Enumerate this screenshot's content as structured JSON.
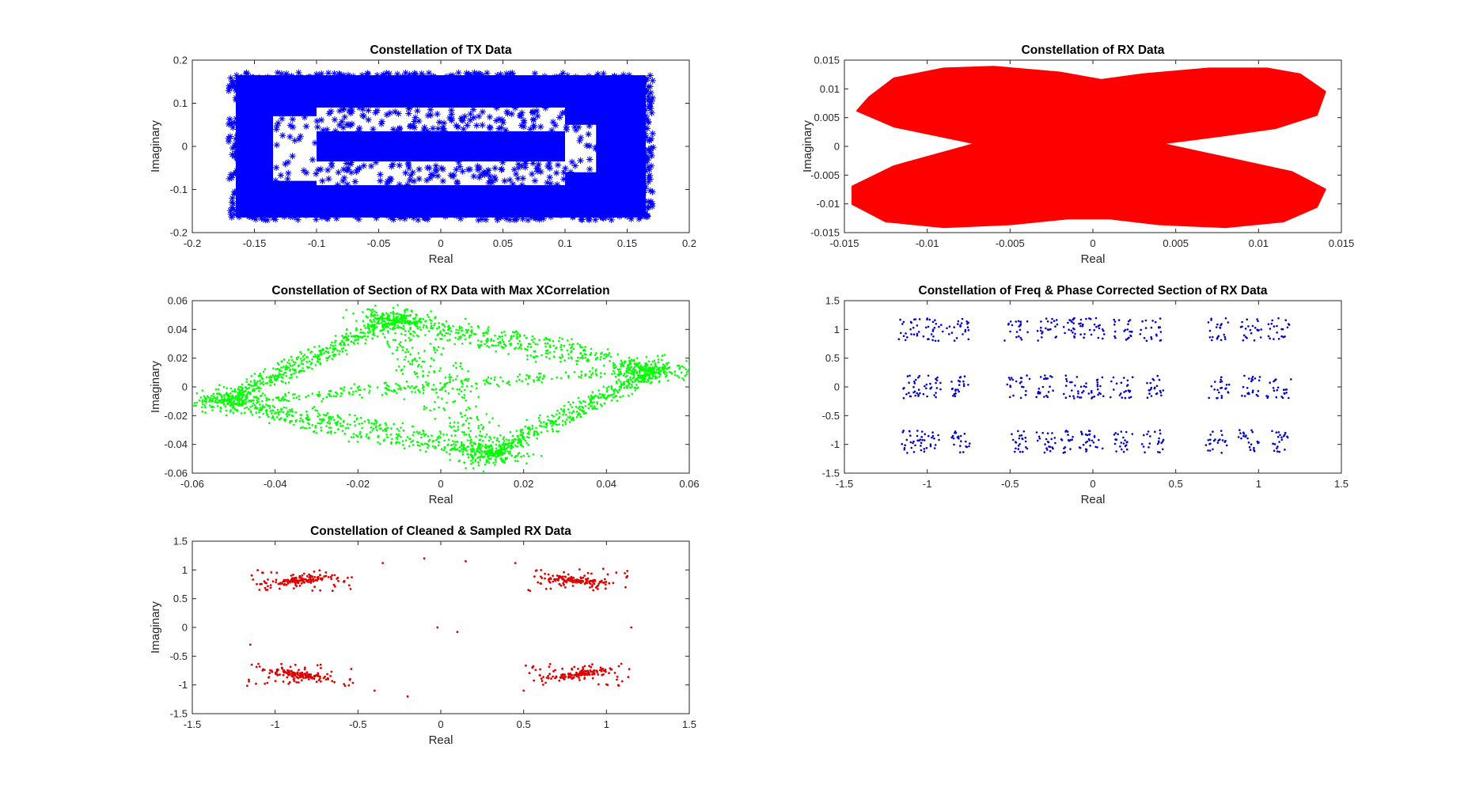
{
  "figure": {
    "background": "#ffffff",
    "axis_color": "#262626"
  },
  "chart_data": [
    {
      "id": "tx",
      "type": "scatter",
      "title": "Constellation of TX Data",
      "xlabel": "Real",
      "ylabel": "Imaginary",
      "xlim": [
        -0.2,
        0.2
      ],
      "ylim": [
        -0.2,
        0.2
      ],
      "xticks": [
        -0.2,
        -0.15,
        -0.1,
        -0.05,
        0,
        0.05,
        0.1,
        0.15,
        0.2
      ],
      "xtick_labels": [
        "-0.2",
        "-0.15",
        "-0.1",
        "-0.05",
        "0",
        "0.05",
        "0.1",
        "0.15",
        "0.2"
      ],
      "yticks": [
        -0.2,
        -0.1,
        0,
        0.1,
        0.2
      ],
      "ytick_labels": [
        "-0.2",
        "-0.1",
        "0",
        "0.1",
        "0.2"
      ],
      "grid": false,
      "marker": "asterisk",
      "color": "#0000ff",
      "series": [
        {
          "shape": "filled-rectangle-with-holes",
          "outer_bounds": {
            "x": [
              -0.165,
              0.165
            ],
            "y": [
              -0.165,
              0.165
            ]
          },
          "holes": [
            {
              "x": [
                -0.135,
                -0.1
              ],
              "y": [
                -0.08,
                0.07
              ]
            },
            {
              "x": [
                0.1,
                0.125
              ],
              "y": [
                -0.06,
                0.05
              ]
            },
            {
              "x": [
                -0.1,
                0.1
              ],
              "y": [
                -0.09,
                -0.035
              ]
            },
            {
              "x": [
                -0.1,
                0.1
              ],
              "y": [
                0.035,
                0.09
              ]
            }
          ]
        }
      ]
    },
    {
      "id": "rx",
      "type": "scatter",
      "title": "Constellation of RX Data",
      "xlabel": "Real",
      "ylabel": "Imaginary",
      "xlim": [
        -0.015,
        0.015
      ],
      "ylim": [
        -0.015,
        0.015
      ],
      "xticks": [
        -0.015,
        -0.01,
        -0.005,
        0,
        0.005,
        0.01,
        0.015
      ],
      "xtick_labels": [
        "-0.015",
        "-0.01",
        "-0.005",
        "0",
        "0.005",
        "0.01",
        "0.015"
      ],
      "yticks": [
        -0.015,
        -0.01,
        -0.005,
        0,
        0.005,
        0.01,
        0.015
      ],
      "ytick_labels": [
        "-0.015",
        "-0.01",
        "-0.005",
        "0",
        "0.005",
        "0.01",
        "0.015"
      ],
      "grid": false,
      "marker": "point",
      "color": "#ff0000",
      "series": [
        {
          "shape": "filled-bowtie-region",
          "outline": [
            [
              -0.0135,
              0.0085
            ],
            [
              -0.012,
              0.0118
            ],
            [
              -0.009,
              0.0135
            ],
            [
              -0.006,
              0.0138
            ],
            [
              -0.002,
              0.0128
            ],
            [
              0.0005,
              0.0115
            ],
            [
              0.003,
              0.0125
            ],
            [
              0.007,
              0.0135
            ],
            [
              0.0105,
              0.0135
            ],
            [
              0.0125,
              0.0125
            ],
            [
              0.014,
              0.0095
            ],
            [
              0.0135,
              0.0055
            ],
            [
              0.011,
              0.0032
            ],
            [
              0.008,
              0.002
            ],
            [
              0.004,
              0.0005
            ],
            [
              0.008,
              -0.002
            ],
            [
              0.012,
              -0.0045
            ],
            [
              0.014,
              -0.0075
            ],
            [
              0.0135,
              -0.0105
            ],
            [
              0.0115,
              -0.013
            ],
            [
              0.008,
              -0.014
            ],
            [
              0.004,
              -0.0135
            ],
            [
              0.001,
              -0.0125
            ],
            [
              -0.0015,
              -0.0125
            ],
            [
              -0.005,
              -0.0135
            ],
            [
              -0.009,
              -0.014
            ],
            [
              -0.0125,
              -0.013
            ],
            [
              -0.0145,
              -0.01
            ],
            [
              -0.0145,
              -0.007
            ],
            [
              -0.012,
              -0.0035
            ],
            [
              -0.007,
              0.0005
            ],
            [
              -0.012,
              0.0035
            ],
            [
              -0.0142,
              0.0062
            ]
          ]
        }
      ]
    },
    {
      "id": "xcorr",
      "type": "scatter",
      "title": "Constellation of Section of RX Data with Max XCorrelation",
      "xlabel": "Real",
      "ylabel": "Imaginary",
      "xlim": [
        -0.06,
        0.06
      ],
      "ylim": [
        -0.06,
        0.06
      ],
      "xticks": [
        -0.06,
        -0.04,
        -0.02,
        0,
        0.02,
        0.04,
        0.06
      ],
      "xtick_labels": [
        "-0.06",
        "-0.04",
        "-0.02",
        "0",
        "0.02",
        "0.04",
        "0.06"
      ],
      "yticks": [
        -0.06,
        -0.04,
        -0.02,
        0,
        0.02,
        0.04,
        0.06
      ],
      "ytick_labels": [
        "-0.06",
        "-0.04",
        "-0.02",
        "0",
        "0.02",
        "0.04",
        "0.06"
      ],
      "grid": false,
      "marker": "point",
      "color": "#00ff00",
      "series": [
        {
          "shape": "rhombus-trajectories",
          "vertices": [
            [
              -0.052,
              -0.01
            ],
            [
              -0.012,
              0.047
            ],
            [
              0.052,
              0.012
            ],
            [
              0.012,
              -0.047
            ]
          ]
        }
      ]
    },
    {
      "id": "freqphase",
      "type": "scatter",
      "title": "Constellation of Freq & Phase Corrected Section of RX Data",
      "xlabel": "Real",
      "ylabel": "",
      "xlim": [
        -1.5,
        1.5
      ],
      "ylim": [
        -1.5,
        1.5
      ],
      "xticks": [
        -1.5,
        -1,
        -0.5,
        0,
        0.5,
        1,
        1.5
      ],
      "xtick_labels": [
        "-1.5",
        "-1",
        "-0.5",
        "0",
        "0.5",
        "1",
        "1.5"
      ],
      "yticks": [
        -1.5,
        -1,
        -0.5,
        0,
        0.5,
        1,
        1.5
      ],
      "ytick_labels": [
        "-1.5",
        "-1",
        "-0.5",
        "0",
        "0.5",
        "1",
        "1.5"
      ],
      "grid": false,
      "marker": "point",
      "color": "#0000cc",
      "series": [
        {
          "shape": "clusters",
          "cluster_x": [
            -1.1,
            -0.98,
            -0.8,
            -0.45,
            -0.28,
            -0.12,
            0.0,
            0.18,
            0.36,
            0.75,
            0.95,
            1.12
          ],
          "cluster_y": [
            1.0,
            0.0,
            -0.95
          ],
          "spread": {
            "x": 0.06,
            "y": 0.2
          }
        }
      ]
    },
    {
      "id": "cleaned",
      "type": "scatter",
      "title": "Constellation of Cleaned & Sampled RX Data",
      "xlabel": "Real",
      "ylabel": "Imaginary",
      "xlim": [
        -1.5,
        1.5
      ],
      "ylim": [
        -1.5,
        1.5
      ],
      "xticks": [
        -1.5,
        -1,
        -0.5,
        0,
        0.5,
        1,
        1.5
      ],
      "xtick_labels": [
        "-1.5",
        "-1",
        "-0.5",
        "0",
        "0.5",
        "1",
        "1.5"
      ],
      "yticks": [
        -1.5,
        -1,
        -0.5,
        0,
        0.5,
        1,
        1.5
      ],
      "ytick_labels": [
        "-1.5",
        "-1",
        "-0.5",
        "0",
        "0.5",
        "1",
        "1.5"
      ],
      "grid": false,
      "marker": "point",
      "color": "#e00000",
      "series": [
        {
          "shape": "four-corner-clusters",
          "centers": [
            [
              -0.85,
              0.82
            ],
            [
              0.82,
              0.82
            ],
            [
              -0.85,
              -0.82
            ],
            [
              0.82,
              -0.82
            ]
          ],
          "stray_points": [
            [
              -0.1,
              1.2
            ],
            [
              0.15,
              1.15
            ],
            [
              -0.02,
              0.0
            ],
            [
              0.1,
              -0.08
            ],
            [
              -0.4,
              -1.1
            ],
            [
              -0.2,
              -1.2
            ],
            [
              0.5,
              -1.1
            ],
            [
              1.15,
              0.0
            ],
            [
              -1.15,
              -0.3
            ],
            [
              -0.35,
              1.12
            ],
            [
              0.45,
              1.12
            ]
          ]
        }
      ]
    }
  ]
}
